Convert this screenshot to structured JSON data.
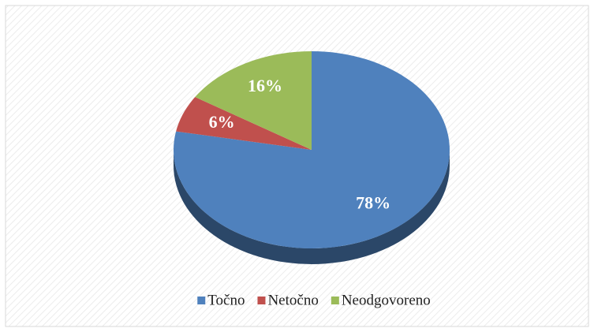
{
  "chart_data": {
    "type": "pie",
    "categories": [
      "Točno",
      "Netočno",
      "Neodgovoreno"
    ],
    "values": [
      78,
      6,
      16
    ],
    "value_labels": [
      "78%",
      "6%",
      "16%"
    ],
    "colors": [
      "#4f81bd",
      "#c0504d",
      "#9bbb59"
    ],
    "legend": "bottom"
  }
}
